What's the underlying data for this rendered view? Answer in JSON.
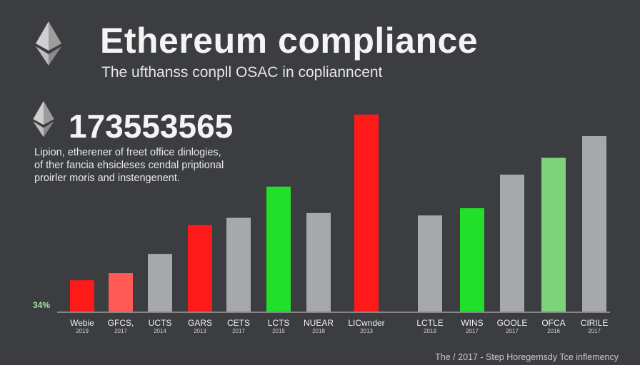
{
  "header": {
    "title": "Ethereum compliance",
    "subtitle": "The ufthanss conpll OSAC in coplianncent"
  },
  "stat": {
    "value": "173553565",
    "description_lines": [
      "Lipion, etherener of freet office dinlogies,",
      "of ther fancia ehsicleses cendal priptional",
      "proirler moris and instengenent."
    ],
    "percent_label": "34%"
  },
  "footer": {
    "text": "The / 2017 - Step Horegemsdy Tce inflemency"
  },
  "chart_data": {
    "type": "bar",
    "categories": [
      "Webie",
      "GFCS,",
      "UCTS",
      "GARS",
      "CETS",
      "LCTS",
      "NUEAR",
      "LICwnder",
      "LCTLE",
      "WINS",
      "GOOLE",
      "OFCA",
      "CIRILE"
    ],
    "years": [
      "2019",
      "2017",
      "2014",
      "2013",
      "2017",
      "2015",
      "2018",
      "2013",
      "2019",
      "2017",
      "2017",
      "2016",
      "2017"
    ],
    "values": [
      13,
      16,
      24,
      36,
      39,
      52,
      41,
      82,
      40,
      43,
      57,
      64,
      73
    ],
    "colors": [
      "#ff1a1a",
      "#ff5a55",
      "#a7a8aa",
      "#ff1a1a",
      "#a7a8aa",
      "#22e029",
      "#a7a8aa",
      "#ff1a1a",
      "#a7a8aa",
      "#22e029",
      "#a7a8aa",
      "#7ed37a",
      "#a7a8aa"
    ],
    "ylim": [
      0,
      100
    ],
    "grid": false
  }
}
